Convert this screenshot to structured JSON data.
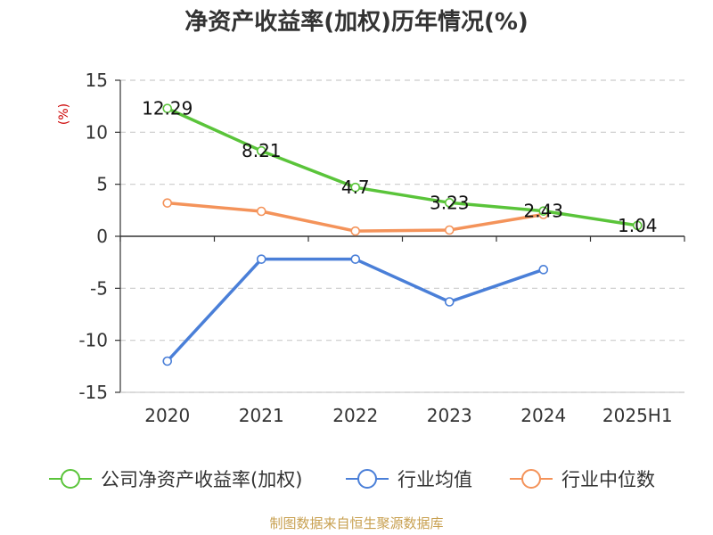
{
  "chart_data": {
    "type": "line",
    "title": "净资产收益率(加权)历年情况(%)",
    "ylabel": "(%)",
    "categories": [
      "2020",
      "2021",
      "2022",
      "2023",
      "2024",
      "2025H1"
    ],
    "ylim": [
      -15,
      15
    ],
    "yticks": [
      15,
      10,
      5,
      0,
      -5,
      -10,
      -15
    ],
    "grid": true,
    "legend_position": "bottom",
    "series": [
      {
        "name": "公司净资产收益率(加权)",
        "color": "#5ac43a",
        "values": [
          12.29,
          8.21,
          4.7,
          3.23,
          2.43,
          1.04
        ],
        "labels": [
          "12.29",
          "8.21",
          "4.7",
          "3.23",
          "2.43",
          "1.04"
        ]
      },
      {
        "name": "行业均值",
        "color": "#4a7fd8",
        "values": [
          -12.0,
          -2.2,
          -2.2,
          -6.3,
          -3.2,
          null
        ]
      },
      {
        "name": "行业中位数",
        "color": "#f4935a",
        "values": [
          3.2,
          2.4,
          0.5,
          0.6,
          2.1,
          null
        ]
      }
    ],
    "source": "制图数据来自恒生聚源数据库",
    "source_color": "#c8a050"
  }
}
